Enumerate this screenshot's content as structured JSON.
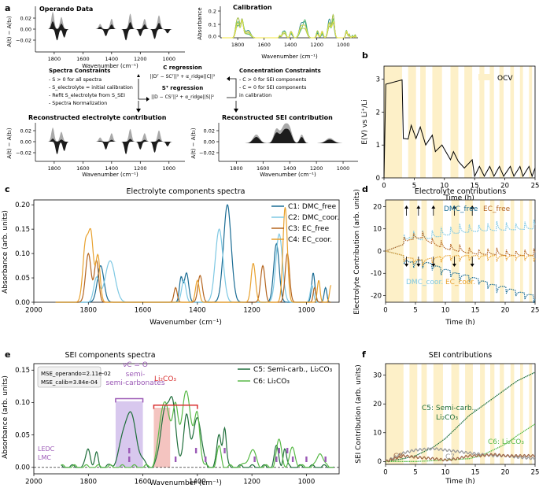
{
  "panels": {
    "a": {
      "label": "a",
      "operando_title": "Operando Data",
      "calibration_title": "Calibration",
      "recon_elec_title": "Reconstructed electrolyte contribution",
      "recon_sei_title": "Reconstructed SEI contribution",
      "y_label_diff": "A(t) − A(t₀)",
      "y_label_abs": "Absorbance",
      "x_label": "Wavenumber (cm⁻¹)",
      "y_ticks_diff": [
        "0.02",
        "0.00",
        "−0.02"
      ],
      "y_ticks_abs": [
        "0.2",
        "0.1",
        "0.0"
      ],
      "x_ticks": [
        "1800",
        "1600",
        "1400",
        "1200",
        "1000"
      ],
      "spectra_constraints": {
        "title": "Spectra Constraints",
        "lines": [
          "- S > 0  for all spectra",
          "- S_electrolyte = initial calibration",
          "- Refit S_electrolyte from S_SEI",
          "- Spectra Normalization"
        ]
      },
      "concentration_constraints": {
        "title": "Concentration Constraints",
        "lines": [
          "- C > 0 for SEI components",
          "- C = 0 for SEI components",
          "  in calibration"
        ]
      },
      "c_regression": {
        "title": "C regression",
        "formula": "||Dᵀ − SCᵀ||² + α_ridge||C||²"
      },
      "s_regression": {
        "title": "Sᵀ regression",
        "formula": "||D − CSᵀ||² + α_ridge||S||²"
      }
    },
    "b": {
      "label": "b",
      "legend": "OCV",
      "ylabel": "E(V) vs Li⁺/Li",
      "xlabel": "Time (h)"
    },
    "c": {
      "label": "c",
      "title": "Electrolyte components spectra",
      "xlabel": "Wavenumber (cm⁻¹)",
      "ylabel": "Absorbance (arb. units)",
      "legend": [
        "C1: DMC_free",
        "C2: DMC_coor.",
        "C3: EC_free",
        "C4: EC_coor."
      ]
    },
    "d": {
      "label": "d",
      "title": "Electrolyte contributions",
      "xlabel": "Time (h)",
      "ylabel": "Electrolyte Contribution (arb. units)",
      "annotations": {
        "dmc_free": "DMC_free",
        "ec_free": "EC_free",
        "dmc_coor": "DMC_coor.",
        "ec_coor": "EC_coor."
      }
    },
    "e": {
      "label": "e",
      "title": "SEI components spectra",
      "xlabel": "Wavenumber (cm⁻¹)",
      "ylabel": "Absorbance (arb. units)",
      "mse_operando": "MSE_operando=2.11e-02",
      "mse_calib": "MSE_calib=3.84e-04",
      "legend": [
        "C5: Semi-carb., Li₂CO₃",
        "C6: Li₂CO₃"
      ],
      "annotation_vco": "νC = O",
      "annotation_semicarb": "semi-carbonates",
      "annotation_li2co3": "Li₂CO₃",
      "ledc": "LEDC",
      "lmc": "LMC"
    },
    "f": {
      "label": "f",
      "title": "SEI contributions",
      "xlabel": "Time (h)",
      "ylabel": "SEI Contribution (arb. units)",
      "annotations": {
        "c5": "C5: Semi-carb., Li₂CO₃",
        "c6": "C6: Li₂CO₃",
        "c7": "C7",
        "c8": "C8"
      }
    }
  },
  "colors": {
    "c1": "#1a6c94",
    "c2": "#7ec8e3",
    "c3": "#b4641e",
    "c4": "#e8a12e",
    "c5": "#1e6e3a",
    "c6": "#58b947",
    "c7": "#9a9a9a",
    "c8": "#a06a4a",
    "ocv": "#fdf0c8",
    "ledc": "#9b59b6",
    "lmc": "#9b59b6",
    "vco_band": "#d8c8ee",
    "li2co3_band": "#f4c4c0",
    "li2co3_bracket": "#d93030"
  },
  "chart_data": [
    {
      "id": "b",
      "type": "line",
      "title": "",
      "xlabel": "Time (h)",
      "ylabel": "E(V) vs Li⁺/Li",
      "xlim": [
        0,
        25
      ],
      "ylim": [
        0,
        3.4
      ],
      "x_ticks": [
        0,
        5,
        10,
        15,
        20,
        25
      ],
      "y_ticks": [
        0,
        1,
        2,
        3
      ],
      "ocv_intervals": [
        [
          0,
          3
        ],
        [
          4,
          5.3
        ],
        [
          6,
          6.9
        ],
        [
          8,
          9.6
        ],
        [
          11,
          12.3
        ],
        [
          13.3,
          14.6
        ],
        [
          15.8,
          16.6
        ],
        [
          17.5,
          18.2
        ],
        [
          19.1,
          19.8
        ],
        [
          20.9,
          21.5
        ],
        [
          22.5,
          23
        ],
        [
          24,
          24.5
        ]
      ],
      "series": [
        {
          "name": "E",
          "x": [
            0,
            0.3,
            3,
            3.2,
            4,
            4.5,
            5.3,
            6,
            6.9,
            8,
            8.5,
            9.6,
            11,
            11.5,
            12.3,
            13.3,
            14.6,
            15,
            15.8,
            16.6,
            17.5,
            18.2,
            19.1,
            19.8,
            20.9,
            21.5,
            22.5,
            23,
            24,
            24.5,
            25
          ],
          "values": [
            0,
            2.85,
            2.98,
            1.2,
            1.18,
            1.6,
            1.2,
            1.55,
            1.0,
            1.3,
            0.8,
            1.0,
            0.55,
            0.8,
            0.5,
            0.3,
            0.55,
            0.05,
            0.35,
            0.05,
            0.35,
            0.05,
            0.35,
            0.05,
            0.35,
            0.05,
            0.35,
            0.05,
            0.35,
            0.05,
            0.3
          ]
        }
      ]
    },
    {
      "id": "c",
      "type": "line",
      "title": "Electrolyte components spectra",
      "xlabel": "Wavenumber (cm⁻¹)",
      "ylabel": "Absorbance (arb. units)",
      "xlim": [
        2000,
        880
      ],
      "ylim": [
        0,
        0.21
      ],
      "x_ticks": [
        2000,
        1800,
        1600,
        1400,
        1200,
        1000
      ],
      "y_ticks": [
        0.0,
        0.05,
        0.1,
        0.15,
        0.2
      ],
      "series": [
        {
          "name": "C1: DMC_free",
          "peaks": [
            [
              1755,
              0.075,
              12
            ],
            [
              1290,
              0.2,
              14
            ],
            [
              1440,
              0.06,
              8
            ],
            [
              1460,
              0.05,
              6
            ],
            [
              1110,
              0.12,
              10
            ],
            [
              975,
              0.06,
              6
            ],
            [
              930,
              0.03,
              5
            ]
          ]
        },
        {
          "name": "C2: DMC_coor.",
          "peaks": [
            [
              1720,
              0.085,
              18
            ],
            [
              1770,
              0.05,
              10
            ],
            [
              1320,
              0.15,
              14
            ],
            [
              1100,
              0.14,
              12
            ],
            [
              1450,
              0.045,
              8
            ],
            [
              980,
              0.035,
              6
            ]
          ]
        },
        {
          "name": "C3: EC_free",
          "peaks": [
            [
              1800,
              0.1,
              10
            ],
            [
              1770,
              0.085,
              8
            ],
            [
              1480,
              0.03,
              6
            ],
            [
              1390,
              0.055,
              8
            ],
            [
              1160,
              0.075,
              8
            ],
            [
              1070,
              0.1,
              8
            ],
            [
              970,
              0.03,
              5
            ]
          ]
        },
        {
          "name": "C4: EC_coor.",
          "peaks": [
            [
              1810,
              0.12,
              10
            ],
            [
              1790,
              0.13,
              9
            ],
            [
              1765,
              0.095,
              8
            ],
            [
              1400,
              0.045,
              7
            ],
            [
              1195,
              0.08,
              8
            ],
            [
              1078,
              0.195,
              8
            ],
            [
              955,
              0.045,
              5
            ],
            [
              910,
              0.035,
              5
            ]
          ]
        }
      ]
    },
    {
      "id": "d",
      "type": "line",
      "title": "Electrolyte contributions",
      "xlabel": "Time (h)",
      "ylabel": "Electrolyte Contribution (arb. units)",
      "xlim": [
        0,
        25
      ],
      "ylim": [
        -23,
        23
      ],
      "x_ticks": [
        0,
        5,
        10,
        15,
        20,
        25
      ],
      "y_ticks": [
        -20,
        -10,
        0,
        10,
        20
      ],
      "series": [
        {
          "name": "DMC_free",
          "x": [
            0,
            3,
            4,
            6,
            8,
            10,
            12,
            14,
            16,
            18,
            20,
            22,
            25
          ],
          "values": [
            0,
            -2,
            -5,
            -4,
            -6,
            -8,
            -10,
            -11,
            -13,
            -15,
            -16,
            -18,
            -20
          ]
        },
        {
          "name": "DMC_coor.",
          "x": [
            0,
            3,
            4,
            6,
            8,
            10,
            12,
            14,
            16,
            18,
            20,
            22,
            25
          ],
          "values": [
            0,
            3,
            6,
            5,
            6,
            7,
            8,
            8.5,
            9,
            9.2,
            9.4,
            9.6,
            10
          ]
        },
        {
          "name": "EC_free",
          "x": [
            0,
            3,
            4,
            6,
            8,
            10,
            12,
            14,
            16,
            18,
            20,
            22,
            25
          ],
          "values": [
            0,
            3,
            5,
            6,
            3,
            1,
            0,
            -1,
            -1.5,
            -1.5,
            -2,
            -2,
            -2
          ]
        },
        {
          "name": "EC_coor.",
          "x": [
            0,
            3,
            4,
            6,
            8,
            10,
            12,
            14,
            16,
            18,
            20,
            22,
            25
          ],
          "values": [
            0,
            -2,
            -3,
            -4,
            -3,
            -2,
            -2,
            -2,
            -2,
            -2,
            -2,
            -2,
            -2
          ]
        }
      ]
    },
    {
      "id": "e",
      "type": "line",
      "title": "SEI components spectra",
      "xlabel": "Wavenumber (cm⁻¹)",
      "ylabel": "Absorbance (arb. units)",
      "xlim": [
        2000,
        880
      ],
      "ylim": [
        -0.01,
        0.16
      ],
      "x_ticks": [
        2000,
        1800,
        1600,
        1400,
        1200,
        1000
      ],
      "y_ticks": [
        0.0,
        0.05,
        0.1,
        0.15
      ],
      "ledc_ticks": [
        1650,
        1405,
        1300,
        1100,
        1070
      ],
      "lmc_ticks": [
        1650,
        1480,
        1370,
        1190,
        1110,
        1050,
        1000,
        930
      ],
      "series": [
        {
          "name": "C5: Semi-carb., Li₂CO₃",
          "peaks": [
            [
              1800,
              0.03,
              8
            ],
            [
              1770,
              0.02,
              6
            ],
            [
              1650,
              0.085,
              25
            ],
            [
              1520,
              0.09,
              15
            ],
            [
              1490,
              0.095,
              12
            ],
            [
              1440,
              0.085,
              10
            ],
            [
              1400,
              0.08,
              14
            ],
            [
              1320,
              0.05,
              8
            ],
            [
              1300,
              0.06,
              6
            ],
            [
              1110,
              0.03,
              8
            ],
            [
              1080,
              0.03,
              6
            ]
          ]
        },
        {
          "name": "C6: Li₂CO₃",
          "peaks": [
            [
              1520,
              0.105,
              18
            ],
            [
              1480,
              0.09,
              10
            ],
            [
              1440,
              0.12,
              16
            ],
            [
              1400,
              0.08,
              10
            ],
            [
              1320,
              0.03,
              8
            ],
            [
              1200,
              0.025,
              15
            ],
            [
              1100,
              0.04,
              10
            ],
            [
              1050,
              0.03,
              10
            ],
            [
              950,
              0.025,
              10
            ]
          ]
        }
      ]
    },
    {
      "id": "f",
      "type": "line",
      "title": "SEI contributions",
      "xlabel": "Time (h)",
      "ylabel": "SEI Contribution (arb. units)",
      "xlim": [
        0,
        25
      ],
      "ylim": [
        -1,
        34
      ],
      "x_ticks": [
        0,
        5,
        10,
        15,
        20,
        25
      ],
      "y_ticks": [
        0,
        10,
        20,
        30
      ],
      "series": [
        {
          "name": "C5: Semi-carb., Li₂CO₃",
          "x": [
            0,
            3,
            5,
            8,
            10,
            12,
            14,
            16,
            18,
            20,
            22,
            25
          ],
          "values": [
            0,
            1,
            2,
            5,
            8,
            12,
            16,
            19,
            22,
            25,
            28,
            31
          ]
        },
        {
          "name": "C6: Li₂CO₃",
          "x": [
            0,
            5,
            10,
            14,
            16,
            18,
            20,
            22,
            25
          ],
          "values": [
            0,
            0,
            0.5,
            1,
            2,
            4,
            6,
            9,
            13
          ]
        },
        {
          "name": "C7",
          "x": [
            0,
            3,
            5,
            8,
            10,
            12,
            14,
            16,
            18,
            20,
            22,
            25
          ],
          "values": [
            0,
            3,
            4,
            4.5,
            4,
            3.5,
            3,
            2.5,
            2,
            2,
            1.5,
            1
          ]
        },
        {
          "name": "C8",
          "x": [
            0,
            3,
            5,
            8,
            10,
            12,
            14,
            16,
            18,
            20,
            22,
            25
          ],
          "values": [
            0,
            2,
            1.5,
            1,
            0.5,
            1,
            2,
            2,
            2.5,
            2,
            2,
            2
          ]
        }
      ]
    }
  ]
}
